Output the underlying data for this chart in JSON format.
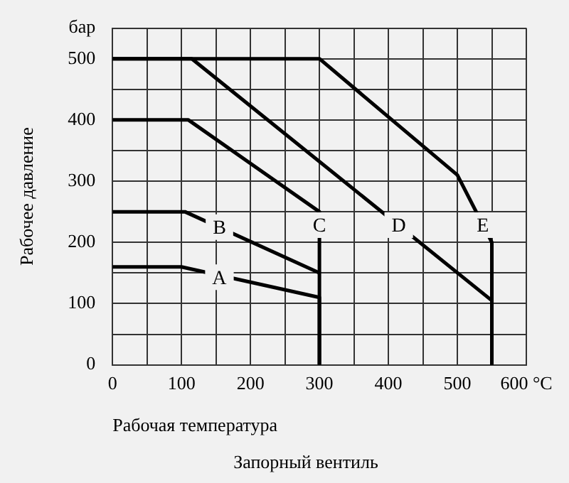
{
  "chart_data": {
    "type": "line",
    "xlabel": "Рабочая температура",
    "ylabel": "Рабочее давление",
    "xlim": [
      0,
      600
    ],
    "ylim": [
      0,
      550
    ],
    "xticks": [
      0,
      {
        "value": 50,
        "label": null
      },
      100,
      {
        "value": 150,
        "label": null
      },
      200,
      {
        "value": 250,
        "label": null
      },
      300,
      {
        "value": 350,
        "label": null
      },
      400,
      {
        "value": 450,
        "label": null
      },
      500,
      {
        "value": 550,
        "label": null
      },
      {
        "value": 600,
        "label": "600 °C"
      }
    ],
    "yticks": [
      0,
      {
        "value": 50,
        "label": null
      },
      100,
      {
        "value": 150,
        "label": null
      },
      200,
      {
        "value": 250,
        "label": null
      },
      300,
      {
        "value": 350,
        "label": null
      },
      400,
      {
        "value": 450,
        "label": null
      },
      500,
      {
        "value": 550,
        "label": "бар"
      }
    ],
    "grid": true,
    "legend": false,
    "marker": "none",
    "line_style": "solid",
    "series": [
      {
        "color": "#000000",
        "x": [
          0,
          100,
          300,
          300
        ],
        "values": [
          160,
          160,
          110,
          0
        ]
      },
      {
        "color": "#000000",
        "x": [
          0,
          105,
          300
        ],
        "values": [
          250,
          250,
          150
        ]
      },
      {
        "color": "#000000",
        "x": [
          0,
          110,
          300,
          300
        ],
        "values": [
          400,
          400,
          250,
          0
        ]
      },
      {
        "color": "#000000",
        "x": [
          0,
          115,
          550,
          550
        ],
        "values": [
          500,
          500,
          105,
          0
        ]
      },
      {
        "color": "#000000",
        "x": [
          0,
          300,
          500,
          550,
          550
        ],
        "values": [
          500,
          500,
          310,
          200,
          0
        ]
      }
    ],
    "annotations": [
      {
        "text": "A",
        "x": 155,
        "y": 143
      },
      {
        "text": "B",
        "x": 155,
        "y": 225
      },
      {
        "text": "C",
        "x": 300,
        "y": 228
      },
      {
        "text": "D",
        "x": 415,
        "y": 228
      },
      {
        "text": "E",
        "x": 537,
        "y": 228
      },
      "Запорный вентиль"
    ]
  }
}
